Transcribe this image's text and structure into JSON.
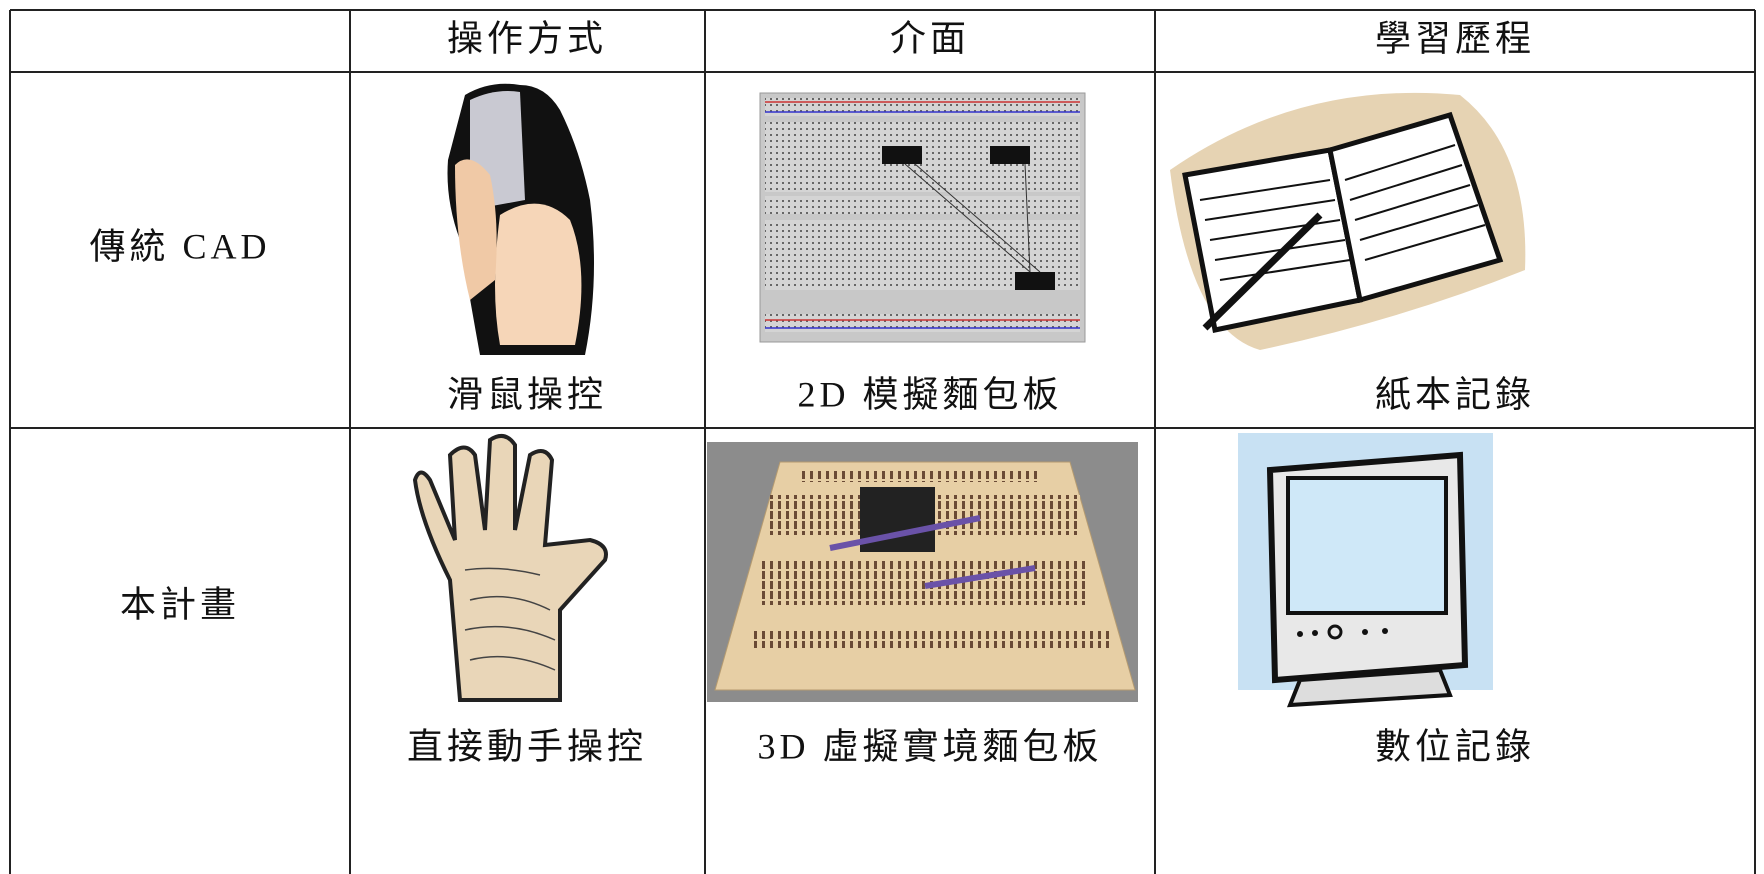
{
  "table": {
    "header": [
      "操作方式",
      "介面",
      "學習歷程"
    ],
    "rows": [
      {
        "label": "傳統 CAD",
        "cells": [
          "滑鼠操控",
          "2D 模擬麵包板",
          "紙本記錄"
        ]
      },
      {
        "label": "本計畫",
        "cells": [
          "直接動手操控",
          "3D 虛擬實境麵包板",
          "數位記錄"
        ]
      }
    ]
  }
}
